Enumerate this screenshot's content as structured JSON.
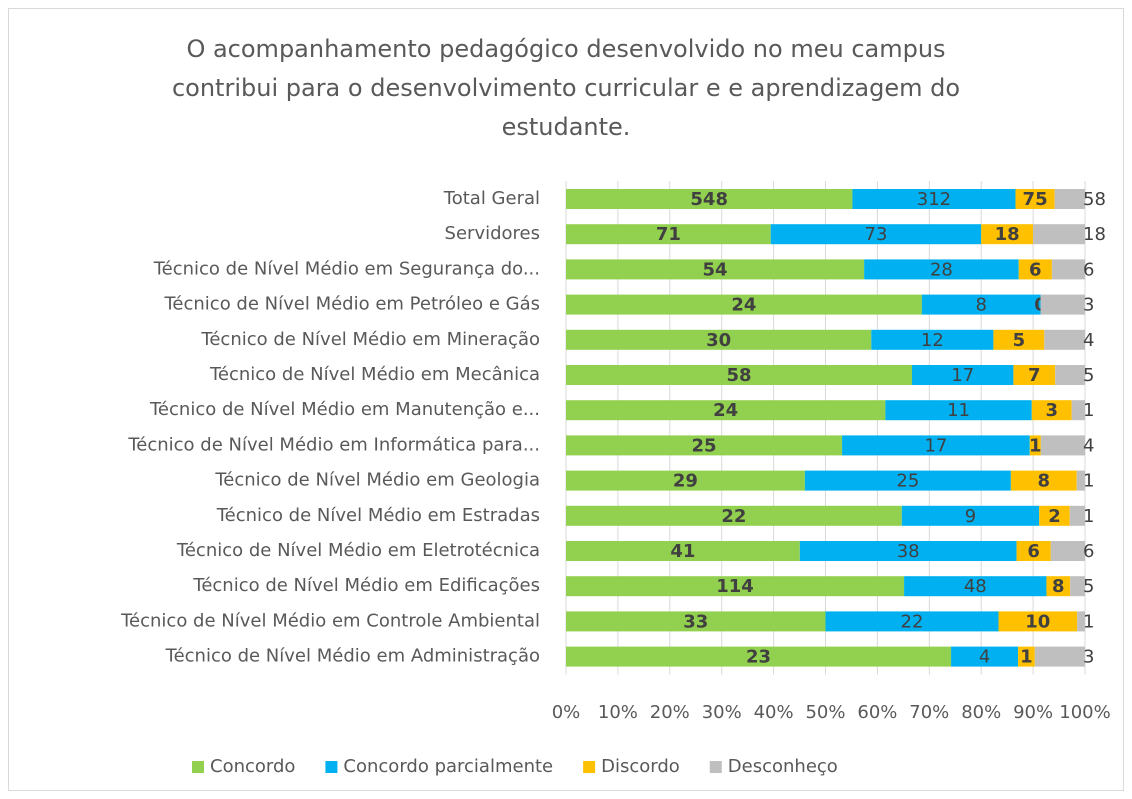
{
  "chart_data": {
    "type": "stacked_bar_100",
    "title": "O acompanhamento pedagógico desenvolvido no meu campus contribui para o desenvolvimento curricular e e aprendizagem do estudante.",
    "categories": [
      "Total Geral",
      "Servidores",
      "Técnico de Nível Médio em Segurança do...",
      "Técnico de Nível Médio em Petróleo e Gás",
      "Técnico de Nível Médio em Mineração",
      "Técnico de Nível Médio em Mecânica",
      "Técnico de Nível Médio em Manutenção e...",
      "Técnico de Nível Médio em Informática para...",
      "Técnico de Nível Médio em Geologia",
      "Técnico de Nível Médio em Estradas",
      "Técnico de Nível Médio em Eletrotécnica",
      "Técnico de Nível Médio em Edificações",
      "Técnico de Nível Médio em Controle Ambiental",
      "Técnico de Nível Médio em Administração"
    ],
    "series": [
      {
        "name": "Concordo",
        "color": "#92d050",
        "values": [
          548,
          71,
          54,
          24,
          30,
          58,
          24,
          25,
          29,
          22,
          41,
          114,
          33,
          23
        ]
      },
      {
        "name": "Concordo parcialmente",
        "color": "#00b0f0",
        "values": [
          312,
          73,
          28,
          8,
          12,
          17,
          11,
          17,
          25,
          9,
          38,
          48,
          22,
          4
        ]
      },
      {
        "name": "Discordo",
        "color": "#ffc000",
        "values": [
          75,
          18,
          6,
          0,
          5,
          7,
          3,
          1,
          8,
          2,
          6,
          8,
          10,
          1
        ]
      },
      {
        "name": "Desconheço",
        "color": "#bfbfbf",
        "values": [
          58,
          18,
          6,
          3,
          4,
          5,
          1,
          4,
          1,
          1,
          6,
          5,
          1,
          3
        ]
      }
    ],
    "xlim": [
      0,
      100
    ],
    "xticks": [
      {
        "value": 0,
        "label": "0%"
      },
      {
        "value": 10,
        "label": "10%"
      },
      {
        "value": 20,
        "label": "20%"
      },
      {
        "value": 30,
        "label": "30%"
      },
      {
        "value": 40,
        "label": "40%"
      },
      {
        "value": 50,
        "label": "50%"
      },
      {
        "value": 60,
        "label": "60%"
      },
      {
        "value": 70,
        "label": "70%"
      },
      {
        "value": 80,
        "label": "80%"
      },
      {
        "value": 90,
        "label": "90%"
      },
      {
        "value": 100,
        "label": "100%"
      }
    ],
    "grid": true,
    "legend": "bottom"
  }
}
